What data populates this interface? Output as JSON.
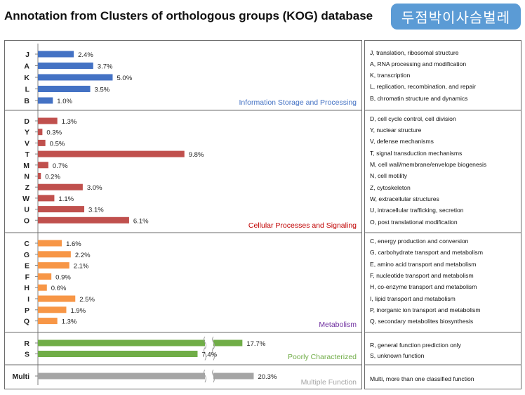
{
  "title": "Annotation from Clusters of orthologous groups (KOG) database",
  "badge": "두점박이사슴벌레",
  "chart_data": {
    "type": "bar",
    "orientation": "horizontal",
    "groups": [
      {
        "name": "Information Storage and Processing",
        "color": "#4472c4",
        "label_color": "#4472c4",
        "categories": [
          "J",
          "A",
          "K",
          "L",
          "B"
        ],
        "values": [
          2.4,
          3.7,
          5.0,
          3.5,
          1.0
        ],
        "labels": [
          "2.4%",
          "3.7%",
          "5.0%",
          "3.5%",
          "1.0%"
        ]
      },
      {
        "name": "Cellular Processes and Signaling",
        "color": "#c0504d",
        "label_color": "#c00000",
        "categories": [
          "D",
          "Y",
          "V",
          "T",
          "M",
          "N",
          "Z",
          "W",
          "U",
          "O"
        ],
        "values": [
          1.3,
          0.3,
          0.5,
          9.8,
          0.7,
          0.2,
          3.0,
          1.1,
          3.1,
          6.1
        ],
        "labels": [
          "1.3%",
          "0.3%",
          "0.5%",
          "9.8%",
          "0.7%",
          "0.2%",
          "3.0%",
          "1.1%",
          "3.1%",
          "6.1%"
        ]
      },
      {
        "name": "Metabolism",
        "color": "#f79646",
        "label_color": "#7030a0",
        "categories": [
          "C",
          "G",
          "E",
          "F",
          "H",
          "I",
          "P",
          "Q"
        ],
        "values": [
          1.6,
          2.2,
          2.1,
          0.9,
          0.6,
          2.5,
          1.9,
          1.3
        ],
        "labels": [
          "1.6%",
          "2.2%",
          "2.1%",
          "0.9%",
          "0.6%",
          "2.5%",
          "1.9%",
          "1.3%"
        ]
      },
      {
        "name": "Poorly Characterized",
        "color": "#70ad47",
        "label_color": "#70ad47",
        "categories": [
          "R",
          "S"
        ],
        "values": [
          17.7,
          7.4
        ],
        "labels": [
          "17.7%",
          "7.4%"
        ],
        "axis_break": true
      },
      {
        "name": "Multiple Function",
        "color": "#a5a5a5",
        "label_color": "#a5a5a5",
        "categories": [
          "Multi"
        ],
        "values": [
          20.3
        ],
        "labels": [
          "20.3%"
        ],
        "axis_break": true
      }
    ],
    "legend": [
      [
        "J, translation, ribosomal structure",
        "A, RNA processing and modification",
        "K, transcription",
        "L, replication, recombination, and repair",
        "B, chromatin structure and dynamics"
      ],
      [
        "D, cell cycle control, cell division",
        "Y, nuclear structure",
        "V, defense mechanisms",
        "T, signal transduction mechanisms",
        "M, cell wall/membrane/envelope biogenesis",
        "N, cell motility",
        "Z, cytoskeleton",
        "W, extracellular structures",
        "U, intracellular trafficking, secretion",
        "O, post translational modification"
      ],
      [
        "C, energy production and conversion",
        "G, carbohydrate transport and metabolism",
        "E, amino acid transport and metabolism",
        "F, nucleotide transport and metabolism",
        "H, co-enzyme transport and metabolism",
        "I, lipid transport and metabolism",
        "P, inorganic ion transport and metabolism",
        "Q, secondary metabolites biosynthesis"
      ],
      [
        "R, general function prediction only",
        "S, unknown function"
      ],
      [
        "Multi, more than one classified function"
      ]
    ]
  }
}
